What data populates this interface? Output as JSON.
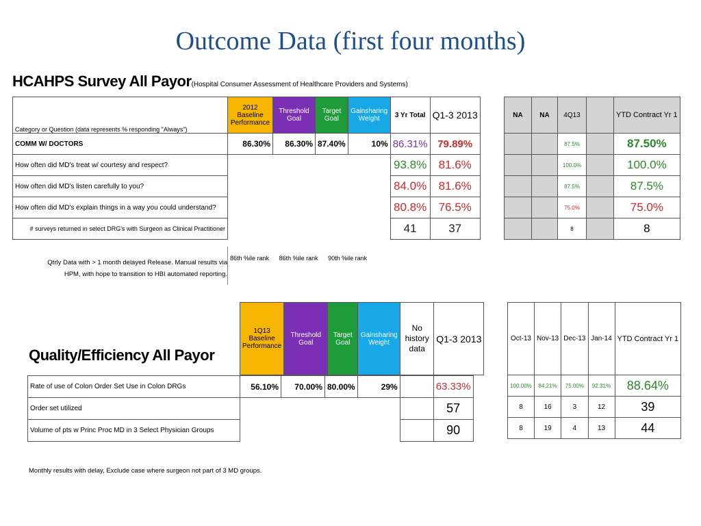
{
  "slide": {
    "title": "Outcome Data (first four months)"
  },
  "hcahps": {
    "heading": "HCAHPS Survey All Payor",
    "subheading": "(Hospital Consumer Assessment of Healthcare Providers and Systems)",
    "category_label": "Category or Question    (data represents % responding \"Always\")",
    "headers": {
      "baseline": "2012 Baseline Performance",
      "threshold": "Threshold Goal",
      "target": "Target Goal",
      "weight": "Gainsharing Weight",
      "three_yr": "3 Yr Total",
      "q13": "Q1-3 2013"
    },
    "rows": [
      {
        "label": "COMM W/ DOCTORS",
        "baseline": "86.30%",
        "threshold": "86.30%",
        "target": "87.40%",
        "weight": "10%",
        "three_yr": "86.31%",
        "q13": "79.89%"
      },
      {
        "label": "How often did MD's treat w/ courtesy and respect?",
        "three_yr": "93.8%",
        "q13": "81.6%"
      },
      {
        "label": "How often did MD's listen carefully to you?",
        "three_yr": "84.0%",
        "q13": "81.6%"
      },
      {
        "label": "How often did MD's explain things in a way you could understand?",
        "three_yr": "80.8%",
        "q13": "76.5%"
      },
      {
        "label": "# surveys returned in select DRG's with Surgeon as Clinical Practitioner",
        "three_yr": "41",
        "q13": "37"
      }
    ],
    "note_line1": "Qtrly Data with > 1 month delayed Release. Manual results via",
    "note_line2": "HPM, with hope to transition to HBI automated reporting.",
    "ranks": [
      "86th %ile rank",
      "86th %ile rank",
      "90th %ile rank"
    ],
    "right_table": {
      "headers": [
        "NA",
        "NA",
        "4Q13",
        "",
        "YTD Contract Yr 1"
      ],
      "rows": [
        {
          "q": "87.5%",
          "ytd": "87.50%"
        },
        {
          "q": "100.0%",
          "ytd": "100.0%"
        },
        {
          "q": "87.5%",
          "ytd": "87.5%"
        },
        {
          "q": "75.0%",
          "ytd": "75.0%"
        },
        {
          "q": "8",
          "ytd": "8"
        }
      ]
    }
  },
  "quality": {
    "heading": "Quality/Efficiency All Payor",
    "headers": {
      "baseline": "1Q13 Baseline Performance",
      "threshold": "Threshold Goal",
      "target": "Target Goal",
      "weight": "Gainsharing Weight",
      "history": "No history data",
      "q13": "Q1-3 2013"
    },
    "rows": [
      {
        "label": "Rate of use of Colon Order Set Use in Colon DRGs",
        "baseline": "56.10%",
        "threshold": "70.00%",
        "target": "80.00%",
        "weight": "29%",
        "q13": "63.33%"
      },
      {
        "label": "Order set utilized",
        "q13": "57"
      },
      {
        "label": "Volume of pts w Princ Proc MD in 3 Select Physician Groups",
        "q13": "90"
      }
    ],
    "note": "Monthly results with delay, Exclude case where surgeon not part of 3 MD groups.",
    "right_table": {
      "headers": [
        "Oct-13",
        "Nov-13",
        "Dec-13",
        "Jan-14",
        "YTD Contract Yr 1"
      ],
      "rows": [
        [
          "100.00%",
          "84.21%",
          "75.00%",
          "92.31%",
          "88.64%"
        ],
        [
          "8",
          "16",
          "3",
          "12",
          "39"
        ],
        [
          "8",
          "19",
          "4",
          "13",
          "44"
        ]
      ]
    }
  },
  "colors": {
    "title": "#1f4e8c",
    "gold": "#f5b500",
    "purple": "#7b2fb5",
    "green": "#1e9c3a",
    "cyan": "#18a8e8",
    "red": "#d12a2a"
  }
}
